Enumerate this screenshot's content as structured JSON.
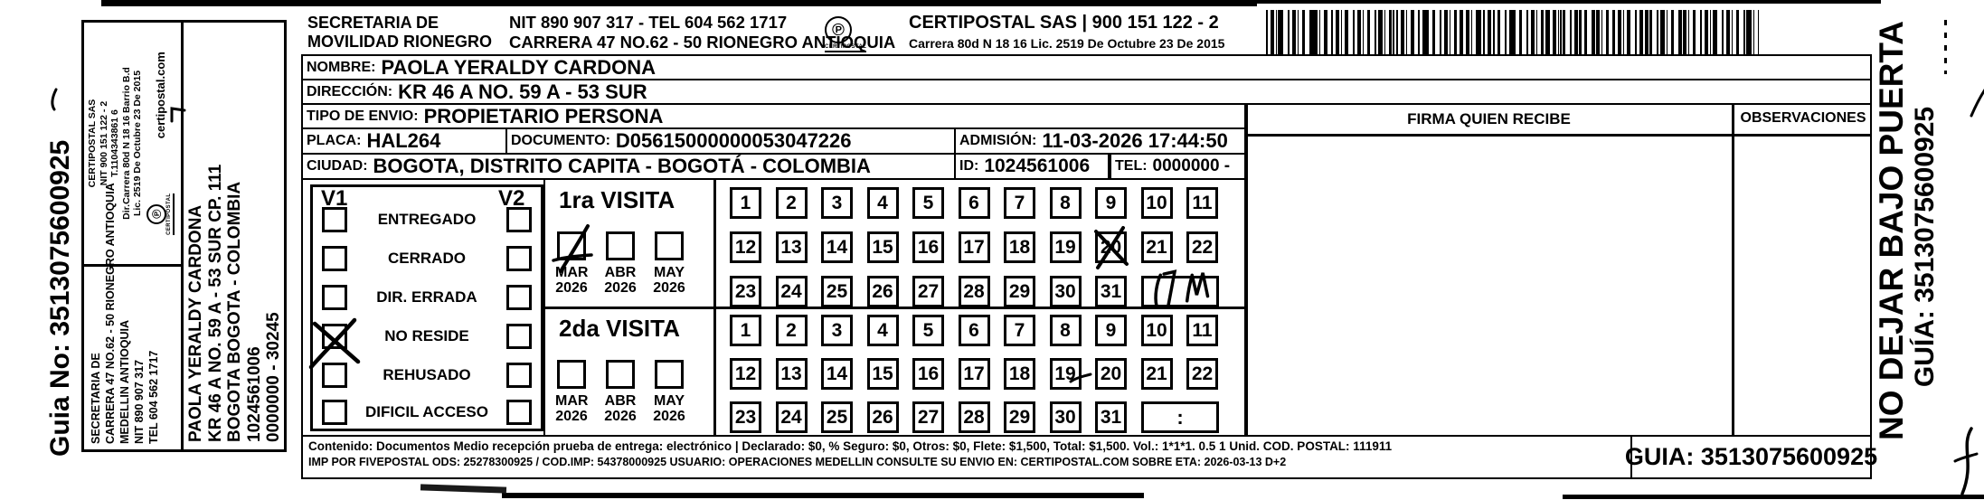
{
  "sidebar": {
    "guia_no": "Guia No: 3513075600925",
    "secretaria_lines": [
      "SECRETARIA DE",
      "CARRERA 47 NO.62 - 50 RIONEGRO ANTIOQUIA",
      "MEDELLIN ANTIOQUIA",
      "NIT 890 907 317",
      "TEL 604 562 1717"
    ],
    "certipostal_lines": [
      "CERTIPOSTAL SAS",
      "NIT 900 151 122 - 2",
      "T.1104343861 6",
      "Dir.Carrera 80d N 18 16 Barrio B.d",
      "Lic. 2519 De Octubre 23 De 2015"
    ],
    "certipostal_web": "certipostal.com",
    "logo_caption": "CERTIPOSTAL",
    "recipient_lines": [
      "PAOLA YERALDY CARDONA",
      "KR 46 A NO. 59 A - 53 SUR CP. 111",
      "BOGOTA BOGOTA - COLOMBIA",
      "1024561006",
      "0000000 - 30245"
    ]
  },
  "header": {
    "org_line1": "SECRETARIA DE",
    "org_line2": "MOVILIDAD RIONEGRO",
    "nit_tel": "NIT 890 907 317 - TEL 604 562 1717",
    "address": "CARRERA 47 NO.62 - 50 RIONEGRO ANTIOQUIA",
    "logo_caption": "CERTIPOSTAL",
    "certipostal_title": "CERTIPOSTAL SAS | 900 151 122 - 2",
    "certipostal_sub": "Carrera 80d N 18 16  Lic. 2519 De Octubre 23 De 2015"
  },
  "form": {
    "nombre_label": "NOMBRE:",
    "nombre": "PAOLA YERALDY CARDONA",
    "direccion_label": "DIRECCIÓN:",
    "direccion": "KR 46 A NO. 59 A - 53 SUR",
    "tipo_label": "TIPO DE ENVIO:",
    "tipo": "PROPIETARIO PERSONA",
    "placa_label": "PLACA:",
    "placa": "HAL264",
    "documento_label": "DOCUMENTO:",
    "documento": "D05615000000053047226",
    "admision_label": "ADMISIÓN:",
    "admision": "11-03-2026 17:44:50",
    "ciudad_label": "CIUDAD:",
    "ciudad": "BOGOTA, DISTRITO CAPITA - BOGOTÁ - COLOMBIA",
    "id_label": "ID:",
    "id": "1024561006",
    "tel_label": "TEL:",
    "tel": "0000000 -"
  },
  "status_panel": {
    "col1": "V1",
    "col2": "V2",
    "options": [
      {
        "label": "ENTREGADO",
        "v1": false,
        "v2": false
      },
      {
        "label": "CERRADO",
        "v1": false,
        "v2": false
      },
      {
        "label": "DIR. ERRADA",
        "v1": false,
        "v2": false
      },
      {
        "label": "NO RESIDE",
        "v1": true,
        "v2": false
      },
      {
        "label": "REHUSADO",
        "v1": false,
        "v2": false
      },
      {
        "label": "DIFICIL ACCESO",
        "v1": false,
        "v2": false
      }
    ]
  },
  "visits": {
    "first": {
      "title": "1ra VISITA",
      "months": [
        {
          "name": "MAR",
          "year": "2026",
          "checked": true
        },
        {
          "name": "ABR",
          "year": "2026",
          "checked": false
        },
        {
          "name": "MAY",
          "year": "2026",
          "checked": false
        }
      ],
      "day_rows": [
        [
          "1",
          "2",
          "3",
          "4",
          "5",
          "6",
          "7",
          "8",
          "9",
          "10",
          "11"
        ],
        [
          "12",
          "13",
          "14",
          "15",
          "16",
          "17",
          "18",
          "19",
          "20",
          "21",
          "22"
        ],
        [
          "23",
          "24",
          "25",
          "26",
          "27",
          "28",
          "29",
          "30",
          "31"
        ]
      ],
      "crossed_day": "20",
      "time_scribble": "17 W"
    },
    "second": {
      "title": "2da VISITA",
      "months": [
        {
          "name": "MAR",
          "year": "2026",
          "checked": false
        },
        {
          "name": "ABR",
          "year": "2026",
          "checked": false
        },
        {
          "name": "MAY",
          "year": "2026",
          "checked": false
        }
      ],
      "day_rows": [
        [
          "1",
          "2",
          "3",
          "4",
          "5",
          "6",
          "7",
          "8",
          "9",
          "10",
          "11"
        ],
        [
          "12",
          "13",
          "14",
          "15",
          "16",
          "17",
          "18",
          "19",
          "20",
          "21",
          "22"
        ],
        [
          "23",
          "24",
          "25",
          "26",
          "27",
          "28",
          "29",
          "30",
          "31"
        ]
      ],
      "time_value": ":"
    }
  },
  "right_panel": {
    "firma_header": "FIRMA QUIEN RECIBE",
    "observaciones_header": "OBSERVACIONES"
  },
  "footer": {
    "content_line": "Contenido: Documentos Medio recepción prueba de entrega: electrónico | Declarado: $0, % Seguro: $0, Otros: $0, Flete: $1,500, Total: $1,500. Vol.: 1*1*1. 0.5  1 Unid. COD. POSTAL: 111911",
    "imp_line": "IMP POR FIVEPOSTAL ODS: 25278300925 / COD.IMP: 54378000925 USUARIO: OPERACIONES MEDELLIN CONSULTE SU ENVIO EN: CERTIPOSTAL.COM SOBRE ETA: 2026-03-13 D+2",
    "guia": "GUIA: 3513075600925"
  },
  "right_margin": {
    "warning": "NO DEJAR BAJO PUERTA",
    "guia": "GUÍA: 3513075600925"
  }
}
